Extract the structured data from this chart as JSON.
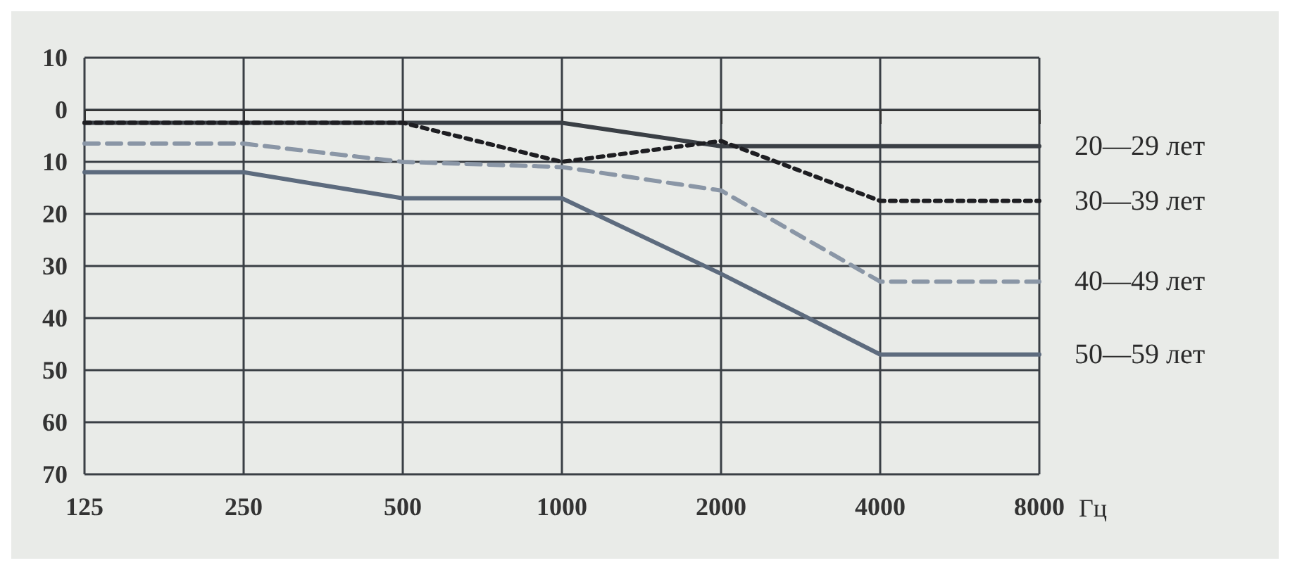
{
  "chart_data": {
    "type": "line",
    "xlabel": "Гц",
    "categories": [
      "125",
      "250",
      "500",
      "1000",
      "2000",
      "4000",
      "8000"
    ],
    "series": [
      {
        "name": "20—29 лет",
        "color": "#3a3f45",
        "line_style": "solid",
        "values": [
          2.5,
          2.5,
          2.5,
          2.5,
          7,
          7,
          7
        ]
      },
      {
        "name": "30—39 лет",
        "color": "#1e1e22",
        "line_style": "dotted",
        "values": [
          2.5,
          2.5,
          2.5,
          10,
          6,
          17.5,
          17.5
        ]
      },
      {
        "name": "40—49 лет",
        "color": "#8a96a6",
        "line_style": "dashed",
        "values": [
          6.5,
          6.5,
          10,
          11,
          15.5,
          33,
          33
        ]
      },
      {
        "name": "50—59 лет",
        "color": "#5d6b7e",
        "line_style": "solid",
        "values": [
          12,
          12,
          17,
          17,
          31.5,
          47,
          47
        ]
      }
    ],
    "ylim": [
      70,
      -10
    ],
    "yticks": [
      {
        "value": -10,
        "label": "10"
      },
      0,
      10,
      20,
      30,
      40,
      50,
      60,
      70
    ],
    "grid": true,
    "legend": false,
    "marker": "none"
  }
}
